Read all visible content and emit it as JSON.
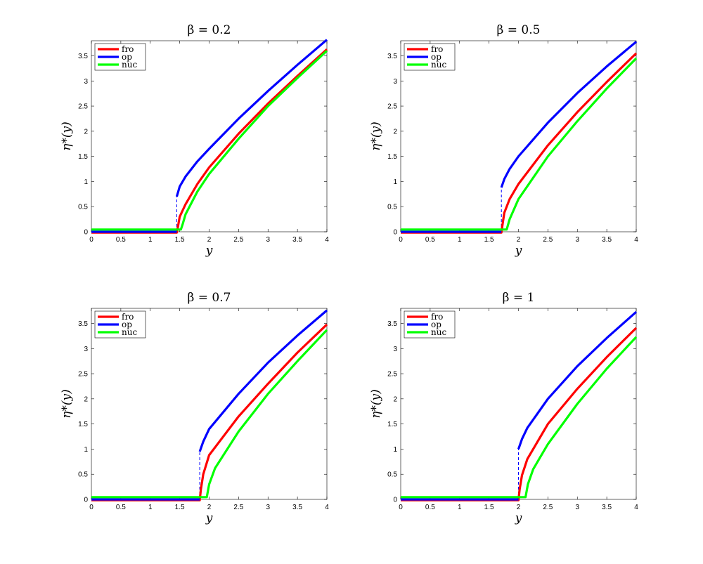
{
  "figure": {
    "colors": {
      "fro": "#ff0000",
      "op": "#0000ff",
      "nuc": "#00ff00",
      "axis": "#000000"
    }
  },
  "chart_data": [
    {
      "type": "line",
      "title": "β = 0.2",
      "xlabel": "y",
      "ylabel": "η*(y)",
      "xlim": [
        0,
        4
      ],
      "ylim": [
        0,
        3.8
      ],
      "xticks": [
        "0",
        "0.5",
        "1",
        "1.5",
        "2",
        "2.5",
        "3",
        "3.5",
        "4"
      ],
      "yticks": [
        "0",
        "0.5",
        "1",
        "1.5",
        "2",
        "2.5",
        "3",
        "3.5"
      ],
      "legend_position": "top-left",
      "threshold": 1.45,
      "series": [
        {
          "name": "fro",
          "color": "#ff0000",
          "x": [
            0,
            1.45,
            1.47,
            1.5,
            1.6,
            1.8,
            2.0,
            2.5,
            3.0,
            3.5,
            4.0
          ],
          "y": [
            0,
            0,
            0.1,
            0.3,
            0.55,
            0.95,
            1.28,
            1.95,
            2.55,
            3.1,
            3.63
          ]
        },
        {
          "name": "op",
          "color": "#0000ff",
          "x": [
            0,
            1.45,
            1.45,
            1.5,
            1.6,
            1.8,
            2.0,
            2.5,
            3.0,
            3.5,
            4.0
          ],
          "y": [
            0,
            0,
            0.7,
            0.9,
            1.1,
            1.4,
            1.65,
            2.25,
            2.8,
            3.32,
            3.82
          ]
        },
        {
          "name": "nuc",
          "color": "#00ff00",
          "x": [
            0,
            1.45,
            1.52,
            1.55,
            1.6,
            1.8,
            2.0,
            2.5,
            3.0,
            3.5,
            4.0
          ],
          "y": [
            0,
            0,
            0,
            0.15,
            0.35,
            0.8,
            1.15,
            1.85,
            2.5,
            3.06,
            3.6
          ]
        }
      ]
    },
    {
      "type": "line",
      "title": "β = 0.5",
      "xlabel": "y",
      "ylabel": "η*(y)",
      "xlim": [
        0,
        4
      ],
      "ylim": [
        0,
        3.8
      ],
      "xticks": [
        "0",
        "0.5",
        "1",
        "1.5",
        "2",
        "2.5",
        "3",
        "3.5",
        "4"
      ],
      "yticks": [
        "0",
        "0.5",
        "1",
        "1.5",
        "2",
        "2.5",
        "3",
        "3.5"
      ],
      "legend_position": "top-left",
      "threshold": 1.71,
      "series": [
        {
          "name": "fro",
          "color": "#ff0000",
          "x": [
            0,
            1.71,
            1.73,
            1.76,
            1.85,
            2.0,
            2.5,
            3.0,
            3.5,
            4.0
          ],
          "y": [
            0,
            0,
            0.15,
            0.38,
            0.65,
            0.95,
            1.72,
            2.38,
            2.98,
            3.55
          ]
        },
        {
          "name": "op",
          "color": "#0000ff",
          "x": [
            0,
            1.71,
            1.71,
            1.76,
            1.85,
            2.0,
            2.5,
            3.0,
            3.5,
            4.0
          ],
          "y": [
            0,
            0,
            0.88,
            1.05,
            1.25,
            1.5,
            2.17,
            2.76,
            3.29,
            3.78
          ]
        },
        {
          "name": "nuc",
          "color": "#00ff00",
          "x": [
            0,
            1.71,
            1.8,
            1.85,
            2.0,
            2.5,
            3.0,
            3.5,
            4.0
          ],
          "y": [
            0,
            0,
            0,
            0.25,
            0.65,
            1.5,
            2.2,
            2.85,
            3.45
          ]
        }
      ]
    },
    {
      "type": "line",
      "title": "β = 0.7",
      "xlabel": "y",
      "ylabel": "η*(y)",
      "xlim": [
        0,
        4
      ],
      "ylim": [
        0,
        3.8
      ],
      "xticks": [
        "0",
        "0.5",
        "1",
        "1.5",
        "2",
        "2.5",
        "3",
        "3.5",
        "4"
      ],
      "yticks": [
        "0",
        "0.5",
        "1",
        "1.5",
        "2",
        "2.5",
        "3",
        "3.5"
      ],
      "legend_position": "top-left",
      "threshold": 1.84,
      "series": [
        {
          "name": "fro",
          "color": "#ff0000",
          "x": [
            0,
            1.84,
            1.86,
            1.9,
            2.0,
            2.5,
            3.0,
            3.5,
            4.0
          ],
          "y": [
            0,
            0,
            0.2,
            0.5,
            0.88,
            1.65,
            2.3,
            2.92,
            3.48
          ]
        },
        {
          "name": "op",
          "color": "#0000ff",
          "x": [
            0,
            1.84,
            1.84,
            1.9,
            2.0,
            2.5,
            3.0,
            3.5,
            4.0
          ],
          "y": [
            0,
            0,
            0.95,
            1.15,
            1.4,
            2.1,
            2.72,
            3.26,
            3.76
          ]
        },
        {
          "name": "nuc",
          "color": "#00ff00",
          "x": [
            0,
            1.84,
            1.96,
            2.0,
            2.1,
            2.5,
            3.0,
            3.5,
            4.0
          ],
          "y": [
            0,
            0,
            0,
            0.3,
            0.62,
            1.35,
            2.1,
            2.75,
            3.37
          ]
        }
      ]
    },
    {
      "type": "line",
      "title": "β = 1",
      "xlabel": "y",
      "ylabel": "η*(y)",
      "xlim": [
        0,
        4
      ],
      "ylim": [
        0,
        3.8
      ],
      "xticks": [
        "0",
        "0.5",
        "1",
        "1.5",
        "2",
        "2.5",
        "3",
        "3.5",
        "4"
      ],
      "yticks": [
        "0",
        "0.5",
        "1",
        "1.5",
        "2",
        "2.5",
        "3",
        "3.5"
      ],
      "legend_position": "top-left",
      "threshold": 2.0,
      "series": [
        {
          "name": "fro",
          "color": "#ff0000",
          "x": [
            0,
            2.0,
            2.02,
            2.06,
            2.15,
            2.5,
            3.0,
            3.5,
            4.0
          ],
          "y": [
            0,
            0,
            0.2,
            0.48,
            0.8,
            1.5,
            2.2,
            2.83,
            3.41
          ]
        },
        {
          "name": "op",
          "color": "#0000ff",
          "x": [
            0,
            2.0,
            2.0,
            2.06,
            2.15,
            2.5,
            3.0,
            3.5,
            4.0
          ],
          "y": [
            0,
            0,
            1.0,
            1.2,
            1.42,
            2.0,
            2.65,
            3.21,
            3.73
          ]
        },
        {
          "name": "nuc",
          "color": "#00ff00",
          "x": [
            0,
            2.0,
            2.12,
            2.16,
            2.25,
            2.5,
            3.0,
            3.5,
            4.0
          ],
          "y": [
            0,
            0,
            0,
            0.3,
            0.6,
            1.1,
            1.9,
            2.6,
            3.23
          ]
        }
      ]
    }
  ]
}
